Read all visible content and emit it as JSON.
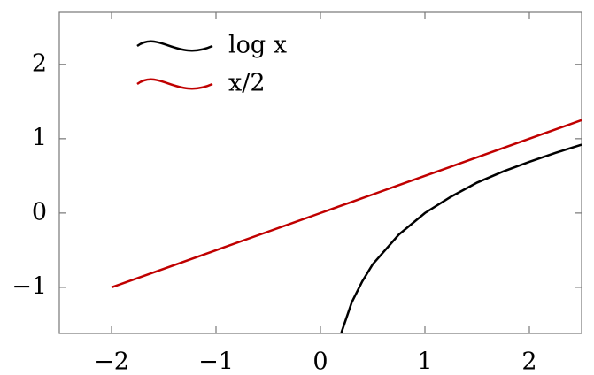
{
  "chart_data": {
    "type": "line",
    "x": [
      -2,
      -1.5,
      -1,
      -0.5,
      0,
      0.2,
      0.3,
      0.4,
      0.5,
      0.75,
      1,
      1.25,
      1.5,
      1.75,
      2,
      2.25,
      2.5
    ],
    "series": [
      {
        "name": "log x",
        "color": "#000000",
        "values": [
          null,
          null,
          null,
          null,
          null,
          -1.61,
          -1.2,
          -0.92,
          -0.69,
          -0.29,
          0,
          0.22,
          0.41,
          0.56,
          0.69,
          0.81,
          0.92
        ]
      },
      {
        "name": "x/2",
        "color": "#c00000",
        "values": [
          -1,
          -0.75,
          -0.5,
          -0.25,
          0,
          0.1,
          0.15,
          0.2,
          0.25,
          0.375,
          0.5,
          0.625,
          0.75,
          0.875,
          1,
          1.125,
          1.25
        ]
      }
    ],
    "xlim": [
      -2.5,
      2.5
    ],
    "ylim": [
      -1.62,
      2.7
    ],
    "xticks": [
      {
        "value": -2,
        "label": "−2"
      },
      {
        "value": -1,
        "label": "−1"
      },
      0,
      1,
      2
    ],
    "yticks": [
      {
        "value": -1,
        "label": "−1"
      },
      0,
      1,
      2
    ],
    "legend": "upper left",
    "grid": false
  }
}
